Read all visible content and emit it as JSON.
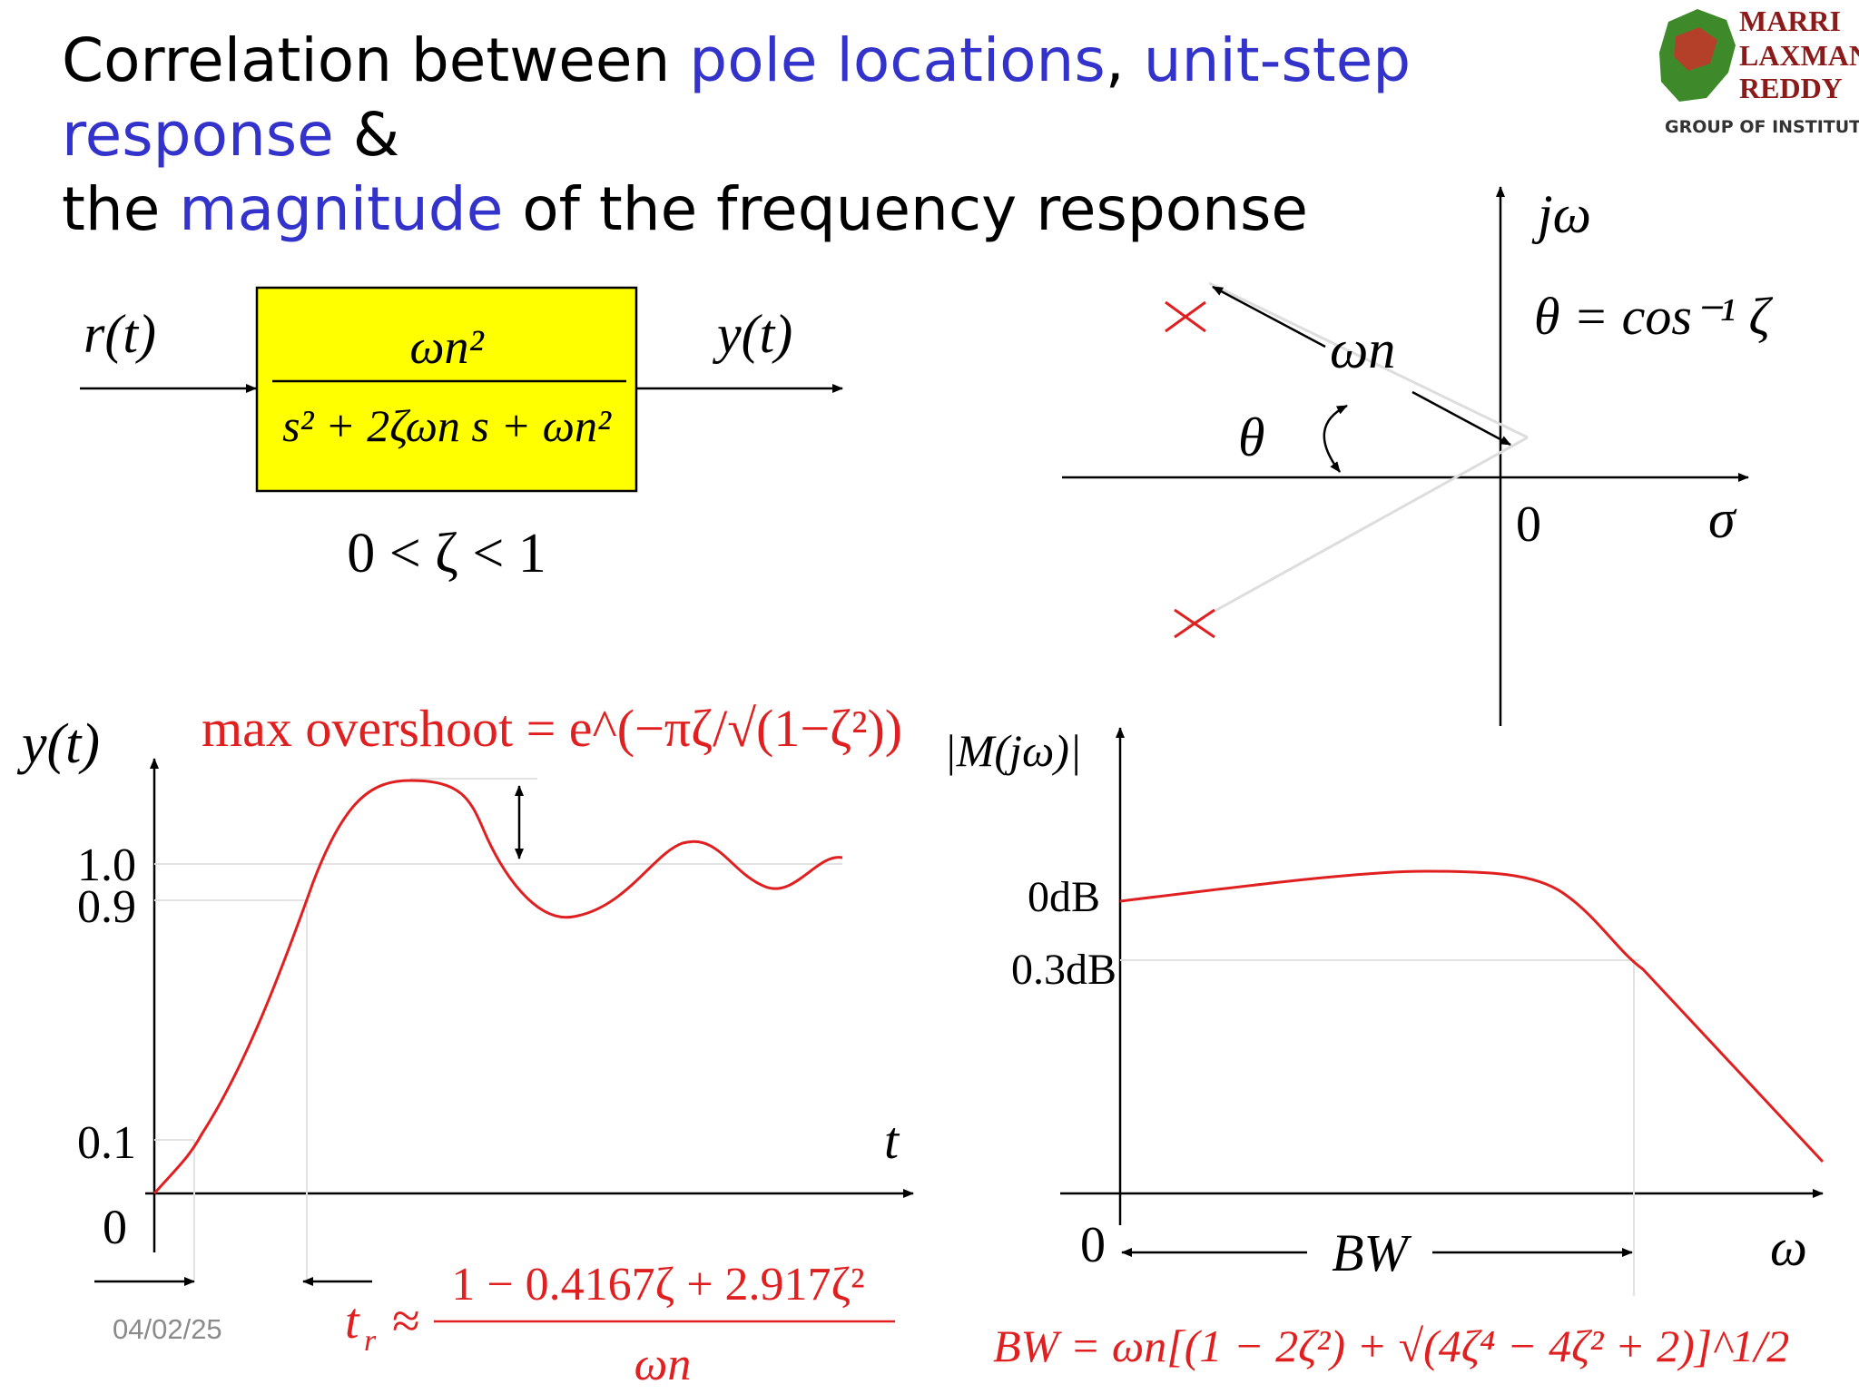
{
  "title": {
    "part1": "Correlation between ",
    "pole_locations": "pole locations",
    "part2": ", ",
    "unit_step_response": "unit-step response",
    "part3": " &",
    "part4": "the ",
    "magnitude": "magnitude",
    "part5": " of the frequency response"
  },
  "logo": {
    "line1": "MARRI",
    "line2": "LAXMAN",
    "line3": "REDDY",
    "subtitle": "GROUP OF INSTITUTIONS"
  },
  "block_diagram": {
    "input_label": "r(t)",
    "output_label": "y(t)",
    "tf_numerator": "ωn²",
    "tf_denominator": "s² + 2ζωn s + ωn²",
    "damping_condition": "0 < ζ < 1",
    "box_color": "#ffff00"
  },
  "pole_plot": {
    "axis_imag_label": "jω",
    "axis_real_label": "σ",
    "origin_label": "0",
    "omega_n_label": "ωn",
    "theta_label": "θ",
    "theta_formula": "θ = cos⁻¹ ζ",
    "pole_marker_color": "#e02020"
  },
  "step_response": {
    "y_axis_label": "y(t)",
    "x_axis_label": "t",
    "max_overshoot_text": "max overshoot = e^(−πζ/√(1−ζ²))",
    "y_ticks": [
      "1.0",
      "0.9",
      "0.1",
      "0"
    ],
    "rise_time_symbol": "t",
    "rise_time_subscript": "r",
    "rise_time_numerator": "1 − 0.4167ζ + 2.917ζ²",
    "rise_time_denominator": "ωn",
    "curve_color": "#e02020"
  },
  "freq_response": {
    "y_axis_label": "|M(jω)|",
    "x_axis_label": "ω",
    "origin_label": "0",
    "y_ticks": [
      "0dB",
      "0.3dB"
    ],
    "bw_label": "BW",
    "bw_formula": "BW = ωn[(1 − 2ζ²) + √(4ζ⁴ − 4ζ² + 2)]^1/2",
    "curve_color": "#e02020"
  },
  "footer": {
    "date": "04/02/25"
  }
}
